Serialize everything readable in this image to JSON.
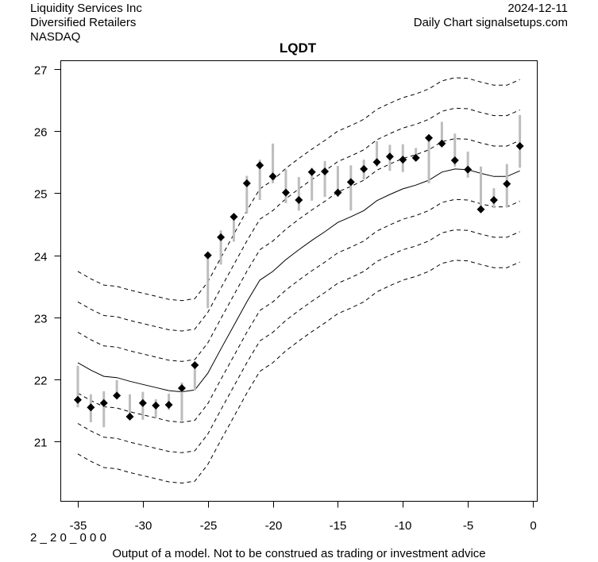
{
  "header": {
    "company": "Liquidity Services Inc",
    "sector": "Diversified Retailers",
    "exchange": "NASDAQ",
    "date": "2024-12-11",
    "source": "Daily Chart signalsetups.com"
  },
  "footer": {
    "code": "2 _ 2 0 _ 0 0 0",
    "disclaimer": "Output of a model. Not to be construed as trading or investment advice"
  },
  "colors": {
    "range_bar": "#bdbdbd",
    "marker": "#000000",
    "center_line": "#000000",
    "band_line": "#000000"
  },
  "chart_data": {
    "type": "line",
    "title": "LQDT",
    "xlabel": "",
    "ylabel": "",
    "xlim": [
      -36.4,
      0.4
    ],
    "ylim": [
      20.0,
      27.15
    ],
    "x_ticks": [
      -35,
      -30,
      -25,
      -20,
      -15,
      -10,
      -5,
      0
    ],
    "x_tick_labels": [
      "-35",
      "-30",
      "-25",
      "-20",
      "-15",
      "-10",
      "-5",
      "0"
    ],
    "y_ticks": [
      21,
      22,
      23,
      24,
      25,
      26,
      27
    ],
    "y_tick_labels": [
      "21",
      "22",
      "23",
      "24",
      "25",
      "26",
      "27"
    ],
    "grid": false,
    "x": [
      -35,
      -34,
      -33,
      -32,
      -31,
      -30,
      -29,
      -28,
      -27,
      -26,
      -25,
      -24,
      -23,
      -22,
      -21,
      -20,
      -19,
      -18,
      -17,
      -16,
      -15,
      -14,
      -13,
      -12,
      -11,
      -10,
      -9,
      -8,
      -7,
      -6,
      -5,
      -4,
      -3,
      -2,
      -1
    ],
    "close": [
      21.67,
      21.55,
      21.62,
      21.74,
      21.4,
      21.62,
      21.58,
      21.59,
      21.86,
      22.23,
      24.0,
      24.29,
      24.62,
      25.16,
      25.45,
      25.27,
      25.01,
      24.89,
      25.34,
      25.35,
      25.01,
      25.18,
      25.39,
      25.5,
      25.59,
      25.54,
      25.57,
      25.89,
      25.8,
      25.53,
      25.38,
      24.74,
      24.89,
      25.15,
      25.76
    ],
    "high": [
      22.22,
      21.76,
      21.81,
      21.99,
      21.76,
      21.8,
      21.68,
      21.77,
      21.95,
      22.26,
      24.0,
      24.4,
      24.67,
      25.28,
      25.54,
      25.8,
      25.38,
      25.26,
      25.41,
      25.52,
      25.44,
      25.45,
      25.54,
      25.84,
      25.78,
      25.79,
      25.73,
      25.92,
      26.15,
      25.96,
      25.67,
      25.43,
      25.08,
      25.47,
      26.26
    ],
    "low": [
      21.55,
      21.31,
      21.23,
      21.74,
      21.36,
      21.35,
      21.38,
      21.51,
      21.33,
      21.82,
      23.15,
      23.85,
      24.22,
      24.67,
      24.89,
      25.16,
      24.84,
      24.72,
      24.88,
      24.94,
      24.94,
      24.72,
      25.22,
      25.43,
      25.36,
      25.34,
      25.52,
      25.16,
      25.76,
      25.43,
      25.25,
      24.7,
      24.76,
      24.77,
      25.41
    ],
    "center": [
      22.27,
      22.15,
      22.05,
      22.03,
      21.97,
      21.92,
      21.87,
      21.82,
      21.8,
      21.83,
      22.1,
      22.49,
      22.87,
      23.25,
      23.6,
      23.74,
      23.93,
      24.09,
      24.24,
      24.38,
      24.53,
      24.62,
      24.72,
      24.88,
      24.98,
      25.07,
      25.13,
      25.21,
      25.34,
      25.39,
      25.38,
      25.32,
      25.27,
      25.27,
      25.36
    ],
    "band_offsets": [
      1.47,
      0.98,
      0.49,
      -0.49,
      -0.98,
      -1.47
    ],
    "series": [
      {
        "name": "range",
        "style": "gray vertical bar"
      },
      {
        "name": "close",
        "style": "black diamond marker"
      },
      {
        "name": "center",
        "style": "solid line"
      },
      {
        "name": "bands",
        "style": "dashed lines"
      }
    ]
  }
}
